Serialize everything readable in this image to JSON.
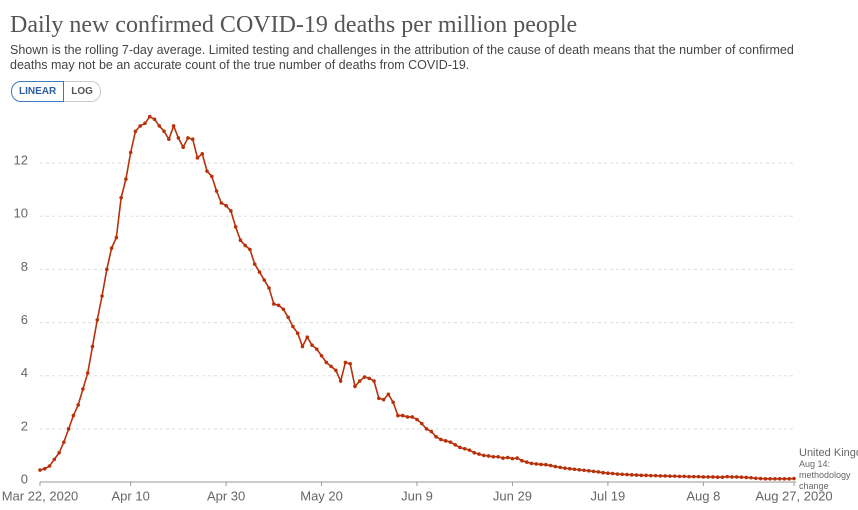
{
  "chart_data": {
    "type": "line",
    "title": "Daily new confirmed COVID-19 deaths per million people",
    "subtitle": "Shown is the rolling 7-day average. Limited testing and challenges in the attribution of the cause of death means that the number of confirmed deaths may not be an accurate count of the true number of deaths from COVID-19.",
    "buttons": [
      "LINEAR",
      "LOG"
    ],
    "annotation": "Aug 14: methodology change",
    "x": [
      "2020-03-22",
      "2020-03-23",
      "2020-03-24",
      "2020-03-25",
      "2020-03-26",
      "2020-03-27",
      "2020-03-28",
      "2020-03-29",
      "2020-03-30",
      "2020-03-31",
      "2020-04-01",
      "2020-04-02",
      "2020-04-03",
      "2020-04-04",
      "2020-04-05",
      "2020-04-06",
      "2020-04-07",
      "2020-04-08",
      "2020-04-09",
      "2020-04-10",
      "2020-04-11",
      "2020-04-12",
      "2020-04-13",
      "2020-04-14",
      "2020-04-15",
      "2020-04-16",
      "2020-04-17",
      "2020-04-18",
      "2020-04-19",
      "2020-04-20",
      "2020-04-21",
      "2020-04-22",
      "2020-04-23",
      "2020-04-24",
      "2020-04-25",
      "2020-04-26",
      "2020-04-27",
      "2020-04-28",
      "2020-04-29",
      "2020-04-30",
      "2020-05-01",
      "2020-05-02",
      "2020-05-03",
      "2020-05-04",
      "2020-05-05",
      "2020-05-06",
      "2020-05-07",
      "2020-05-08",
      "2020-05-09",
      "2020-05-10",
      "2020-05-11",
      "2020-05-12",
      "2020-05-13",
      "2020-05-14",
      "2020-05-15",
      "2020-05-16",
      "2020-05-17",
      "2020-05-18",
      "2020-05-19",
      "2020-05-20",
      "2020-05-21",
      "2020-05-22",
      "2020-05-23",
      "2020-05-24",
      "2020-05-25",
      "2020-05-26",
      "2020-05-27",
      "2020-05-28",
      "2020-05-29",
      "2020-05-30",
      "2020-05-31",
      "2020-06-01",
      "2020-06-02",
      "2020-06-03",
      "2020-06-04",
      "2020-06-05",
      "2020-06-06",
      "2020-06-07",
      "2020-06-08",
      "2020-06-09",
      "2020-06-10",
      "2020-06-11",
      "2020-06-12",
      "2020-06-13",
      "2020-06-14",
      "2020-06-15",
      "2020-06-16",
      "2020-06-17",
      "2020-06-18",
      "2020-06-19",
      "2020-06-20",
      "2020-06-21",
      "2020-06-22",
      "2020-06-23",
      "2020-06-24",
      "2020-06-25",
      "2020-06-26",
      "2020-06-27",
      "2020-06-28",
      "2020-06-29",
      "2020-06-30",
      "2020-07-01",
      "2020-07-02",
      "2020-07-03",
      "2020-07-04",
      "2020-07-05",
      "2020-07-06",
      "2020-07-07",
      "2020-07-08",
      "2020-07-09",
      "2020-07-10",
      "2020-07-11",
      "2020-07-12",
      "2020-07-13",
      "2020-07-14",
      "2020-07-15",
      "2020-07-16",
      "2020-07-17",
      "2020-07-18",
      "2020-07-19",
      "2020-07-20",
      "2020-07-21",
      "2020-07-22",
      "2020-07-23",
      "2020-07-24",
      "2020-07-25",
      "2020-07-26",
      "2020-07-27",
      "2020-07-28",
      "2020-07-29",
      "2020-07-30",
      "2020-07-31",
      "2020-08-01",
      "2020-08-02",
      "2020-08-03",
      "2020-08-04",
      "2020-08-05",
      "2020-08-06",
      "2020-08-07",
      "2020-08-08",
      "2020-08-09",
      "2020-08-10",
      "2020-08-11",
      "2020-08-12",
      "2020-08-13",
      "2020-08-14",
      "2020-08-15",
      "2020-08-16",
      "2020-08-17",
      "2020-08-18",
      "2020-08-19",
      "2020-08-20",
      "2020-08-21",
      "2020-08-22",
      "2020-08-23",
      "2020-08-24",
      "2020-08-25",
      "2020-08-26",
      "2020-08-27"
    ],
    "series": [
      {
        "name": "United Kingdom",
        "color": "#b8310b",
        "values": [
          0.45,
          0.5,
          0.6,
          0.85,
          1.1,
          1.5,
          2.0,
          2.5,
          2.9,
          3.5,
          4.1,
          5.1,
          6.1,
          7.0,
          8.0,
          8.8,
          9.2,
          10.7,
          11.4,
          12.4,
          13.2,
          13.4,
          13.5,
          13.75,
          13.65,
          13.4,
          13.2,
          12.9,
          13.4,
          12.95,
          12.6,
          12.95,
          12.9,
          12.2,
          12.35,
          11.7,
          11.5,
          10.95,
          10.5,
          10.4,
          10.2,
          9.6,
          9.1,
          8.9,
          8.75,
          8.2,
          7.9,
          7.6,
          7.3,
          6.7,
          6.65,
          6.5,
          6.2,
          5.85,
          5.6,
          5.1,
          5.45,
          5.15,
          5.0,
          4.75,
          4.5,
          4.35,
          4.2,
          3.8,
          4.5,
          4.45,
          3.6,
          3.8,
          3.95,
          3.9,
          3.8,
          3.15,
          3.1,
          3.3,
          3.0,
          2.5,
          2.5,
          2.45,
          2.45,
          2.35,
          2.2,
          2.0,
          1.9,
          1.7,
          1.6,
          1.55,
          1.5,
          1.4,
          1.3,
          1.25,
          1.2,
          1.1,
          1.05,
          1.0,
          0.98,
          0.95,
          0.95,
          0.9,
          0.92,
          0.88,
          0.9,
          0.8,
          0.75,
          0.7,
          0.68,
          0.66,
          0.65,
          0.62,
          0.58,
          0.55,
          0.52,
          0.5,
          0.48,
          0.46,
          0.44,
          0.42,
          0.4,
          0.38,
          0.35,
          0.33,
          0.32,
          0.3,
          0.29,
          0.28,
          0.27,
          0.26,
          0.25,
          0.25,
          0.24,
          0.24,
          0.23,
          0.23,
          0.22,
          0.22,
          0.21,
          0.21,
          0.2,
          0.2,
          0.2,
          0.19,
          0.19,
          0.19,
          0.18,
          0.18,
          0.2,
          0.19,
          0.19,
          0.18,
          0.17,
          0.16,
          0.14,
          0.13,
          0.12,
          0.12,
          0.12,
          0.12,
          0.12,
          0.12,
          0.13
        ]
      }
    ],
    "xlim": [
      "2020-03-22",
      "2020-08-27"
    ],
    "xticks": [
      {
        "value": "2020-03-22",
        "label": "Mar 22, 2020"
      },
      {
        "value": "2020-04-10",
        "label": "Apr 10"
      },
      {
        "value": "2020-04-30",
        "label": "Apr 30"
      },
      {
        "value": "2020-05-20",
        "label": "May 20"
      },
      {
        "value": "2020-06-09",
        "label": "Jun 9"
      },
      {
        "value": "2020-06-29",
        "label": "Jun 29"
      },
      {
        "value": "2020-07-19",
        "label": "Jul 19"
      },
      {
        "value": "2020-08-08",
        "label": "Aug 8"
      },
      {
        "value": "2020-08-27",
        "label": "Aug 27, 2020"
      }
    ],
    "ylim": [
      0,
      14
    ],
    "yticks": [
      0,
      2,
      4,
      6,
      8,
      10,
      12
    ],
    "grid": true
  }
}
